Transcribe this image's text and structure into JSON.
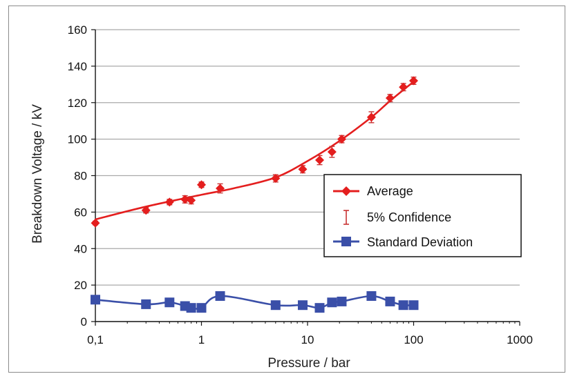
{
  "chart_data": {
    "type": "line",
    "xlabel": "Pressure / bar",
    "ylabel": "Breakdown Voltage / kV",
    "x_scale": "log",
    "xlim": [
      0.1,
      1000
    ],
    "ylim": [
      0,
      160
    ],
    "x_ticks": [
      "0,1",
      "1",
      "10",
      "100",
      "1000"
    ],
    "y_ticks": [
      "0",
      "20",
      "40",
      "60",
      "80",
      "100",
      "120",
      "140",
      "160"
    ],
    "grid": "horizontal",
    "legend_position": "right",
    "series": [
      {
        "name": "Average",
        "color": "#e41e1e",
        "marker": "diamond",
        "x": [
          0.1,
          0.3,
          0.5,
          0.7,
          0.8,
          1,
          1.5,
          5,
          9,
          13,
          17,
          21,
          40,
          60,
          80,
          100
        ],
        "y": [
          54,
          61,
          65.5,
          67,
          66.5,
          75,
          73,
          78.5,
          83.5,
          88.5,
          93,
          100,
          112,
          122.5,
          128.5,
          132
        ],
        "fit": [
          [
            0.1,
            56
          ],
          [
            0.3,
            63
          ],
          [
            1,
            69.5
          ],
          [
            2,
            73
          ],
          [
            5,
            79
          ],
          [
            10,
            88
          ],
          [
            20,
            99
          ],
          [
            40,
            112
          ],
          [
            60,
            121
          ],
          [
            100,
            131.5
          ]
        ]
      },
      {
        "name": "5% Confidence",
        "color": "#c83232",
        "marker": "errorbar",
        "half_width": [
          1,
          1.5,
          1.5,
          2,
          2,
          1.5,
          2.5,
          2,
          2,
          2.5,
          3,
          2,
          3,
          2,
          2,
          2
        ]
      },
      {
        "name": "Standard Deviation",
        "color": "#3a4fa8",
        "marker": "square",
        "x": [
          0.1,
          0.3,
          0.5,
          0.7,
          0.8,
          1,
          1.5,
          5,
          9,
          13,
          17,
          21,
          40,
          60,
          80,
          100
        ],
        "y": [
          12,
          9.5,
          10.5,
          8.5,
          7.5,
          7.5,
          14,
          9,
          9,
          7.5,
          10.5,
          11,
          14,
          11,
          9,
          9
        ]
      }
    ]
  }
}
